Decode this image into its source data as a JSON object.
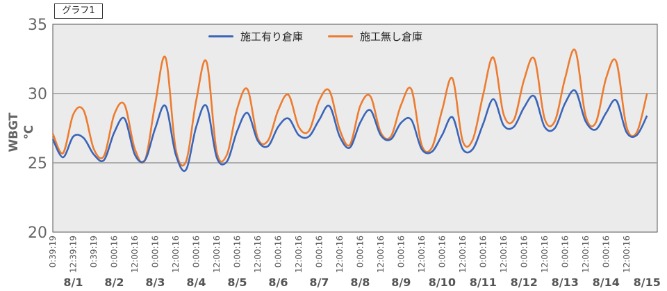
{
  "graph_label": "グラフ1",
  "colors": {
    "series1": "#3a65b8",
    "series2": "#ec7c30",
    "plot_bg": "#ebebeb",
    "grid": "#9a9a9a",
    "axis_text": "#666666"
  },
  "chart_data": {
    "type": "line",
    "title": "",
    "xlabel": "",
    "ylabel": "WBGT ℃",
    "ylim": [
      20,
      35
    ],
    "yticks": [
      20,
      25,
      30,
      35
    ],
    "grid": "horizontal",
    "legend_position": "top-center",
    "x_tick_labels": [
      "0:39:19",
      "12:39:19",
      "0:39:19",
      "0:00:16",
      "12:00:16",
      "0:00:16",
      "12:00:16",
      "0:00:16",
      "12:00:16",
      "0:00:16",
      "12:00:16",
      "0:00:16",
      "12:00:16",
      "0:00:16",
      "12:00:16",
      "0:00:16",
      "12:00:16",
      "0:00:16",
      "12:00:16",
      "0:00:16",
      "12:00:16",
      "0:00:16",
      "12:00:16",
      "0:00:16",
      "12:00:16",
      "0:00:16",
      "12:00:16",
      "0:00:16",
      "12:00:16"
    ],
    "date_labels": [
      "8/1",
      "8/2",
      "8/3",
      "8/4",
      "8/5",
      "8/6",
      "8/7",
      "8/8",
      "8/9",
      "8/10",
      "8/11",
      "8/12",
      "8/13",
      "8/14",
      "8/15"
    ],
    "x_days": [
      0,
      0.25,
      0.5,
      0.75,
      1,
      1.25,
      1.5,
      1.75,
      2,
      2.25,
      2.5,
      2.75,
      3,
      3.25,
      3.5,
      3.75,
      4,
      4.25,
      4.5,
      4.75,
      5,
      5.25,
      5.5,
      5.75,
      6,
      6.25,
      6.5,
      6.75,
      7,
      7.25,
      7.5,
      7.75,
      8,
      8.25,
      8.5,
      8.75,
      9,
      9.25,
      9.5,
      9.75,
      10,
      10.25,
      10.5,
      10.75,
      11,
      11.25,
      11.5,
      11.75,
      12,
      12.25,
      12.5,
      12.75,
      13,
      13.25,
      13.5,
      13.75,
      14,
      14.25,
      14.5
    ],
    "series": [
      {
        "name": "施工有り倉庫",
        "values": [
          26.7,
          25.4,
          26.9,
          26.8,
          25.6,
          25.2,
          27.2,
          28.2,
          25.6,
          25.2,
          27.5,
          29.1,
          25.6,
          24.5,
          27.6,
          29.1,
          25.4,
          25.1,
          27.3,
          28.6,
          26.6,
          26.2,
          27.6,
          28.2,
          27.0,
          26.9,
          28.1,
          29.1,
          26.9,
          26.1,
          27.9,
          28.8,
          27.0,
          26.7,
          27.9,
          28.1,
          26.0,
          25.8,
          27.0,
          28.3,
          26.0,
          26.0,
          27.8,
          29.6,
          27.7,
          27.6,
          29.0,
          29.8,
          27.6,
          27.5,
          29.3,
          30.2,
          28.0,
          27.4,
          28.6,
          29.5,
          27.2,
          27.0,
          28.4
        ]
      },
      {
        "name": "施工無し倉庫",
        "values": [
          27.1,
          25.7,
          28.5,
          28.8,
          26.0,
          25.5,
          28.5,
          29.2,
          26.0,
          25.2,
          29.3,
          32.6,
          26.0,
          25.1,
          29.5,
          32.3,
          25.8,
          25.6,
          28.9,
          30.3,
          26.8,
          26.6,
          28.8,
          29.9,
          27.6,
          27.3,
          29.5,
          30.2,
          27.4,
          26.3,
          29.1,
          29.8,
          27.2,
          26.9,
          29.2,
          30.3,
          26.3,
          26.1,
          28.8,
          31.1,
          26.6,
          26.7,
          29.9,
          32.6,
          28.5,
          28.1,
          31.0,
          32.5,
          28.2,
          28.0,
          31.1,
          33.1,
          28.4,
          27.9,
          31.1,
          32.3,
          27.6,
          27.2,
          30.0
        ]
      }
    ]
  }
}
